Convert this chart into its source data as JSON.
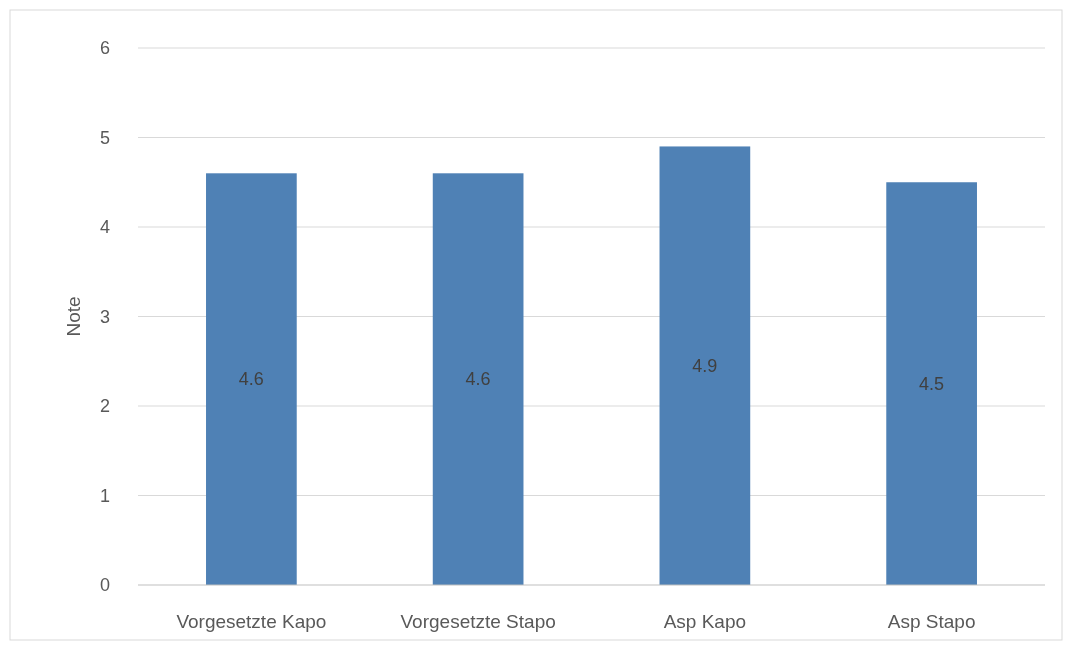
{
  "chart_data": {
    "type": "bar",
    "ylabel": "Note",
    "categories": [
      "Vorgesetzte Kapo",
      "Vorgesetzte Stapo",
      "Asp Kapo",
      "Asp Stapo"
    ],
    "values": [
      4.6,
      4.6,
      4.9,
      4.5
    ],
    "color": "#4f81b5",
    "ylim": [
      0,
      6
    ],
    "yticks": [
      0,
      1,
      2,
      3,
      4,
      5,
      6
    ],
    "grid": "y",
    "data_labels": true
  }
}
